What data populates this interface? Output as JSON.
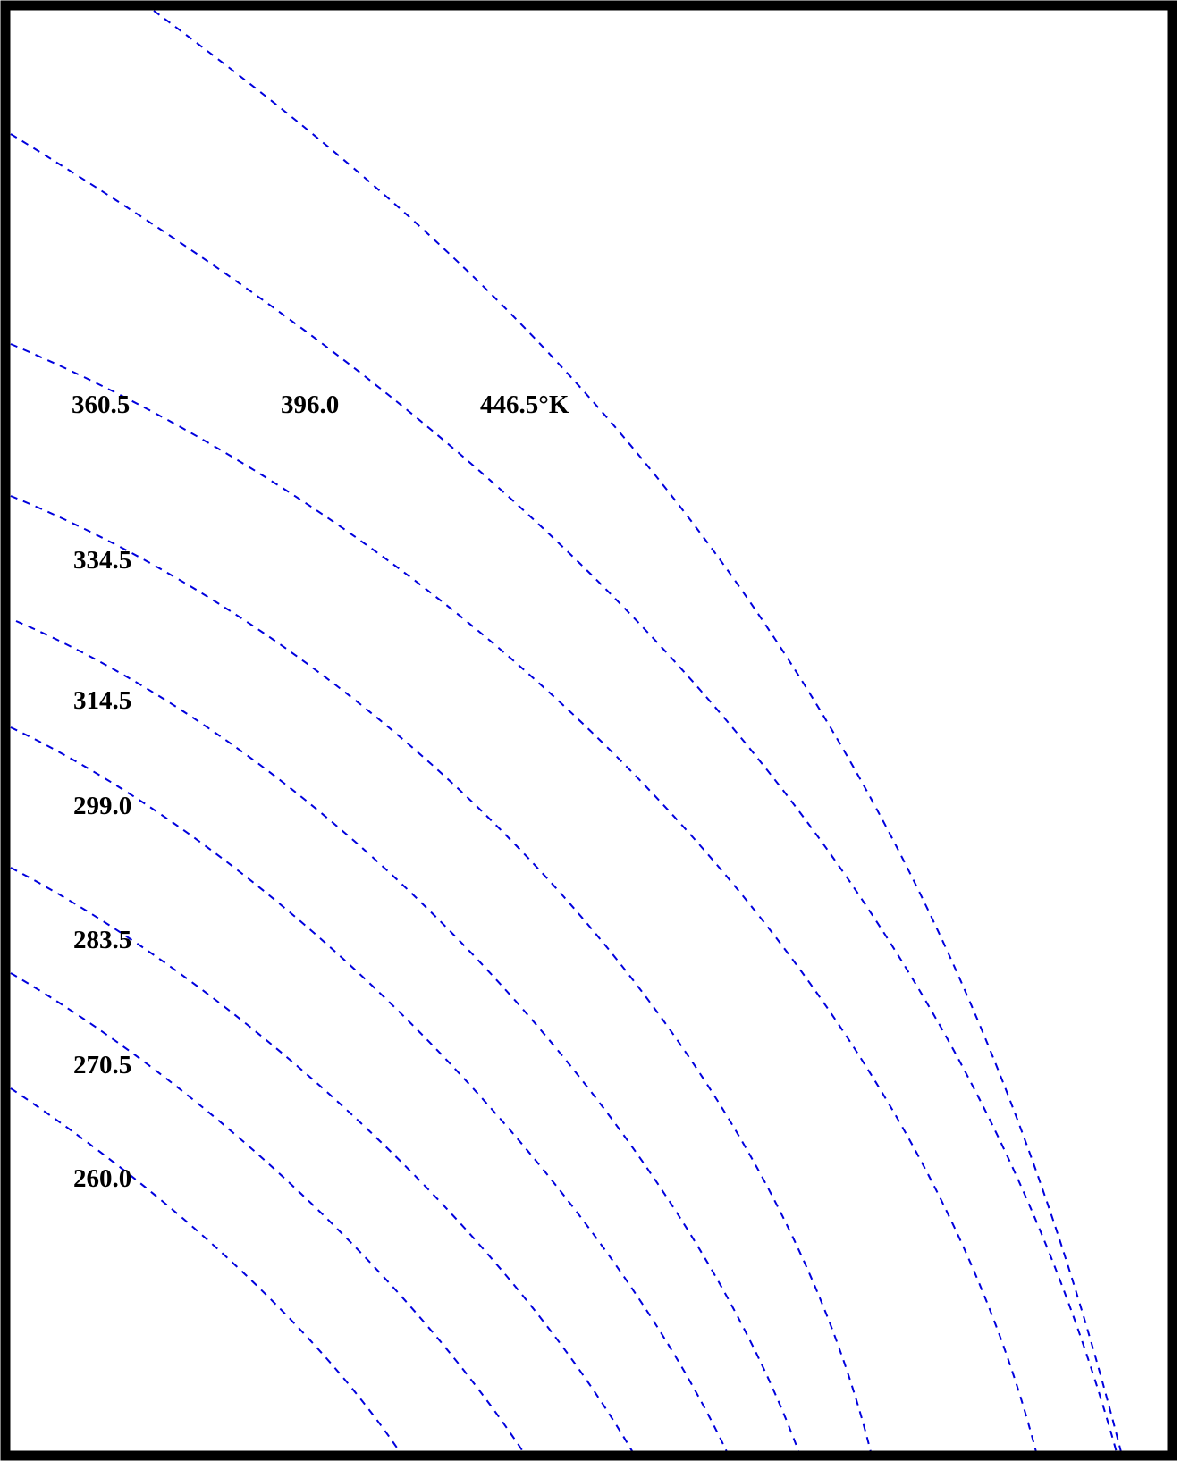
{
  "colors": {
    "isoline": "#0000dd",
    "frame": "#000000",
    "background": "#ffffff"
  },
  "chart_data": {
    "type": "line",
    "grid": false,
    "legend": "none",
    "series": [
      {
        "label": "260.0"
      },
      {
        "label": "270.5"
      },
      {
        "label": "283.5"
      },
      {
        "label": "299.0"
      },
      {
        "label": "314.5"
      },
      {
        "label": "334.5"
      },
      {
        "label": "360.5"
      },
      {
        "label": "396.0"
      },
      {
        "label": "446.5°K"
      }
    ]
  }
}
